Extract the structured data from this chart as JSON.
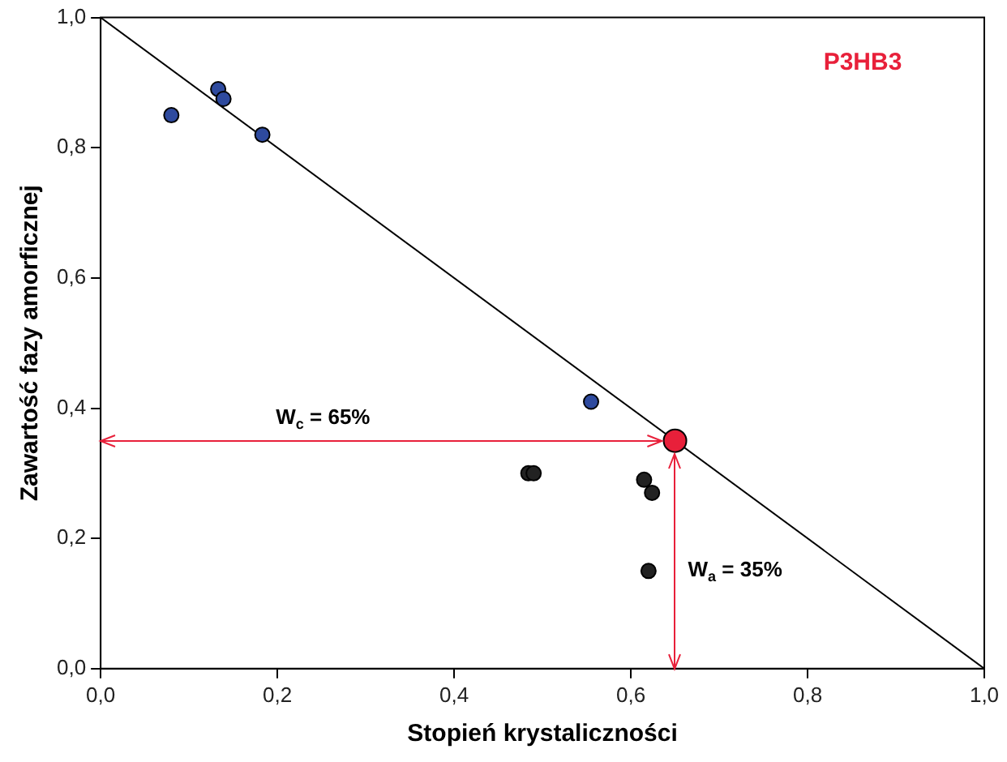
{
  "chart_data": {
    "type": "scatter",
    "xlabel": "Stopień krystaliczności",
    "ylabel": "Zawartość fazy amorficznej",
    "xlim": [
      0,
      1
    ],
    "ylim": [
      0,
      1
    ],
    "xticks": [
      {
        "value": 0,
        "label": "0,0"
      },
      {
        "value": 0.2,
        "label": "0,2"
      },
      {
        "value": 0.4,
        "label": "0,4"
      },
      {
        "value": 0.6,
        "label": "0,6"
      },
      {
        "value": 0.8,
        "label": "0,8"
      },
      {
        "value": 1,
        "label": "1,0"
      }
    ],
    "yticks": [
      {
        "value": 0,
        "label": "0,0"
      },
      {
        "value": 0.2,
        "label": "0,2"
      },
      {
        "value": 0.4,
        "label": "0,4"
      },
      {
        "value": 0.6,
        "label": "0,6"
      },
      {
        "value": 0.8,
        "label": "0,8"
      },
      {
        "value": 1,
        "label": "1,0"
      }
    ],
    "grid": false,
    "legend": false,
    "series": [
      {
        "type": "line",
        "color": "#000000",
        "x": [
          0,
          1
        ],
        "values": [
          1,
          0
        ]
      },
      {
        "color": "#2e4a9e",
        "x": [
          0.08,
          0.133,
          0.139,
          0.183,
          0.555
        ],
        "values": [
          0.85,
          0.89,
          0.875,
          0.82,
          0.41
        ]
      },
      {
        "color": "#222222",
        "x": [
          0.484,
          0.49,
          0.615,
          0.624,
          0.62
        ],
        "values": [
          0.3,
          0.3,
          0.29,
          0.27,
          0.15
        ]
      },
      {
        "color": "#e8203a",
        "x": [
          0.65
        ],
        "values": [
          0.35
        ]
      }
    ],
    "annotations": [
      "P3HB3",
      "W$_{c}$ = 65%",
      "W$_{a}$ = 35%"
    ]
  }
}
